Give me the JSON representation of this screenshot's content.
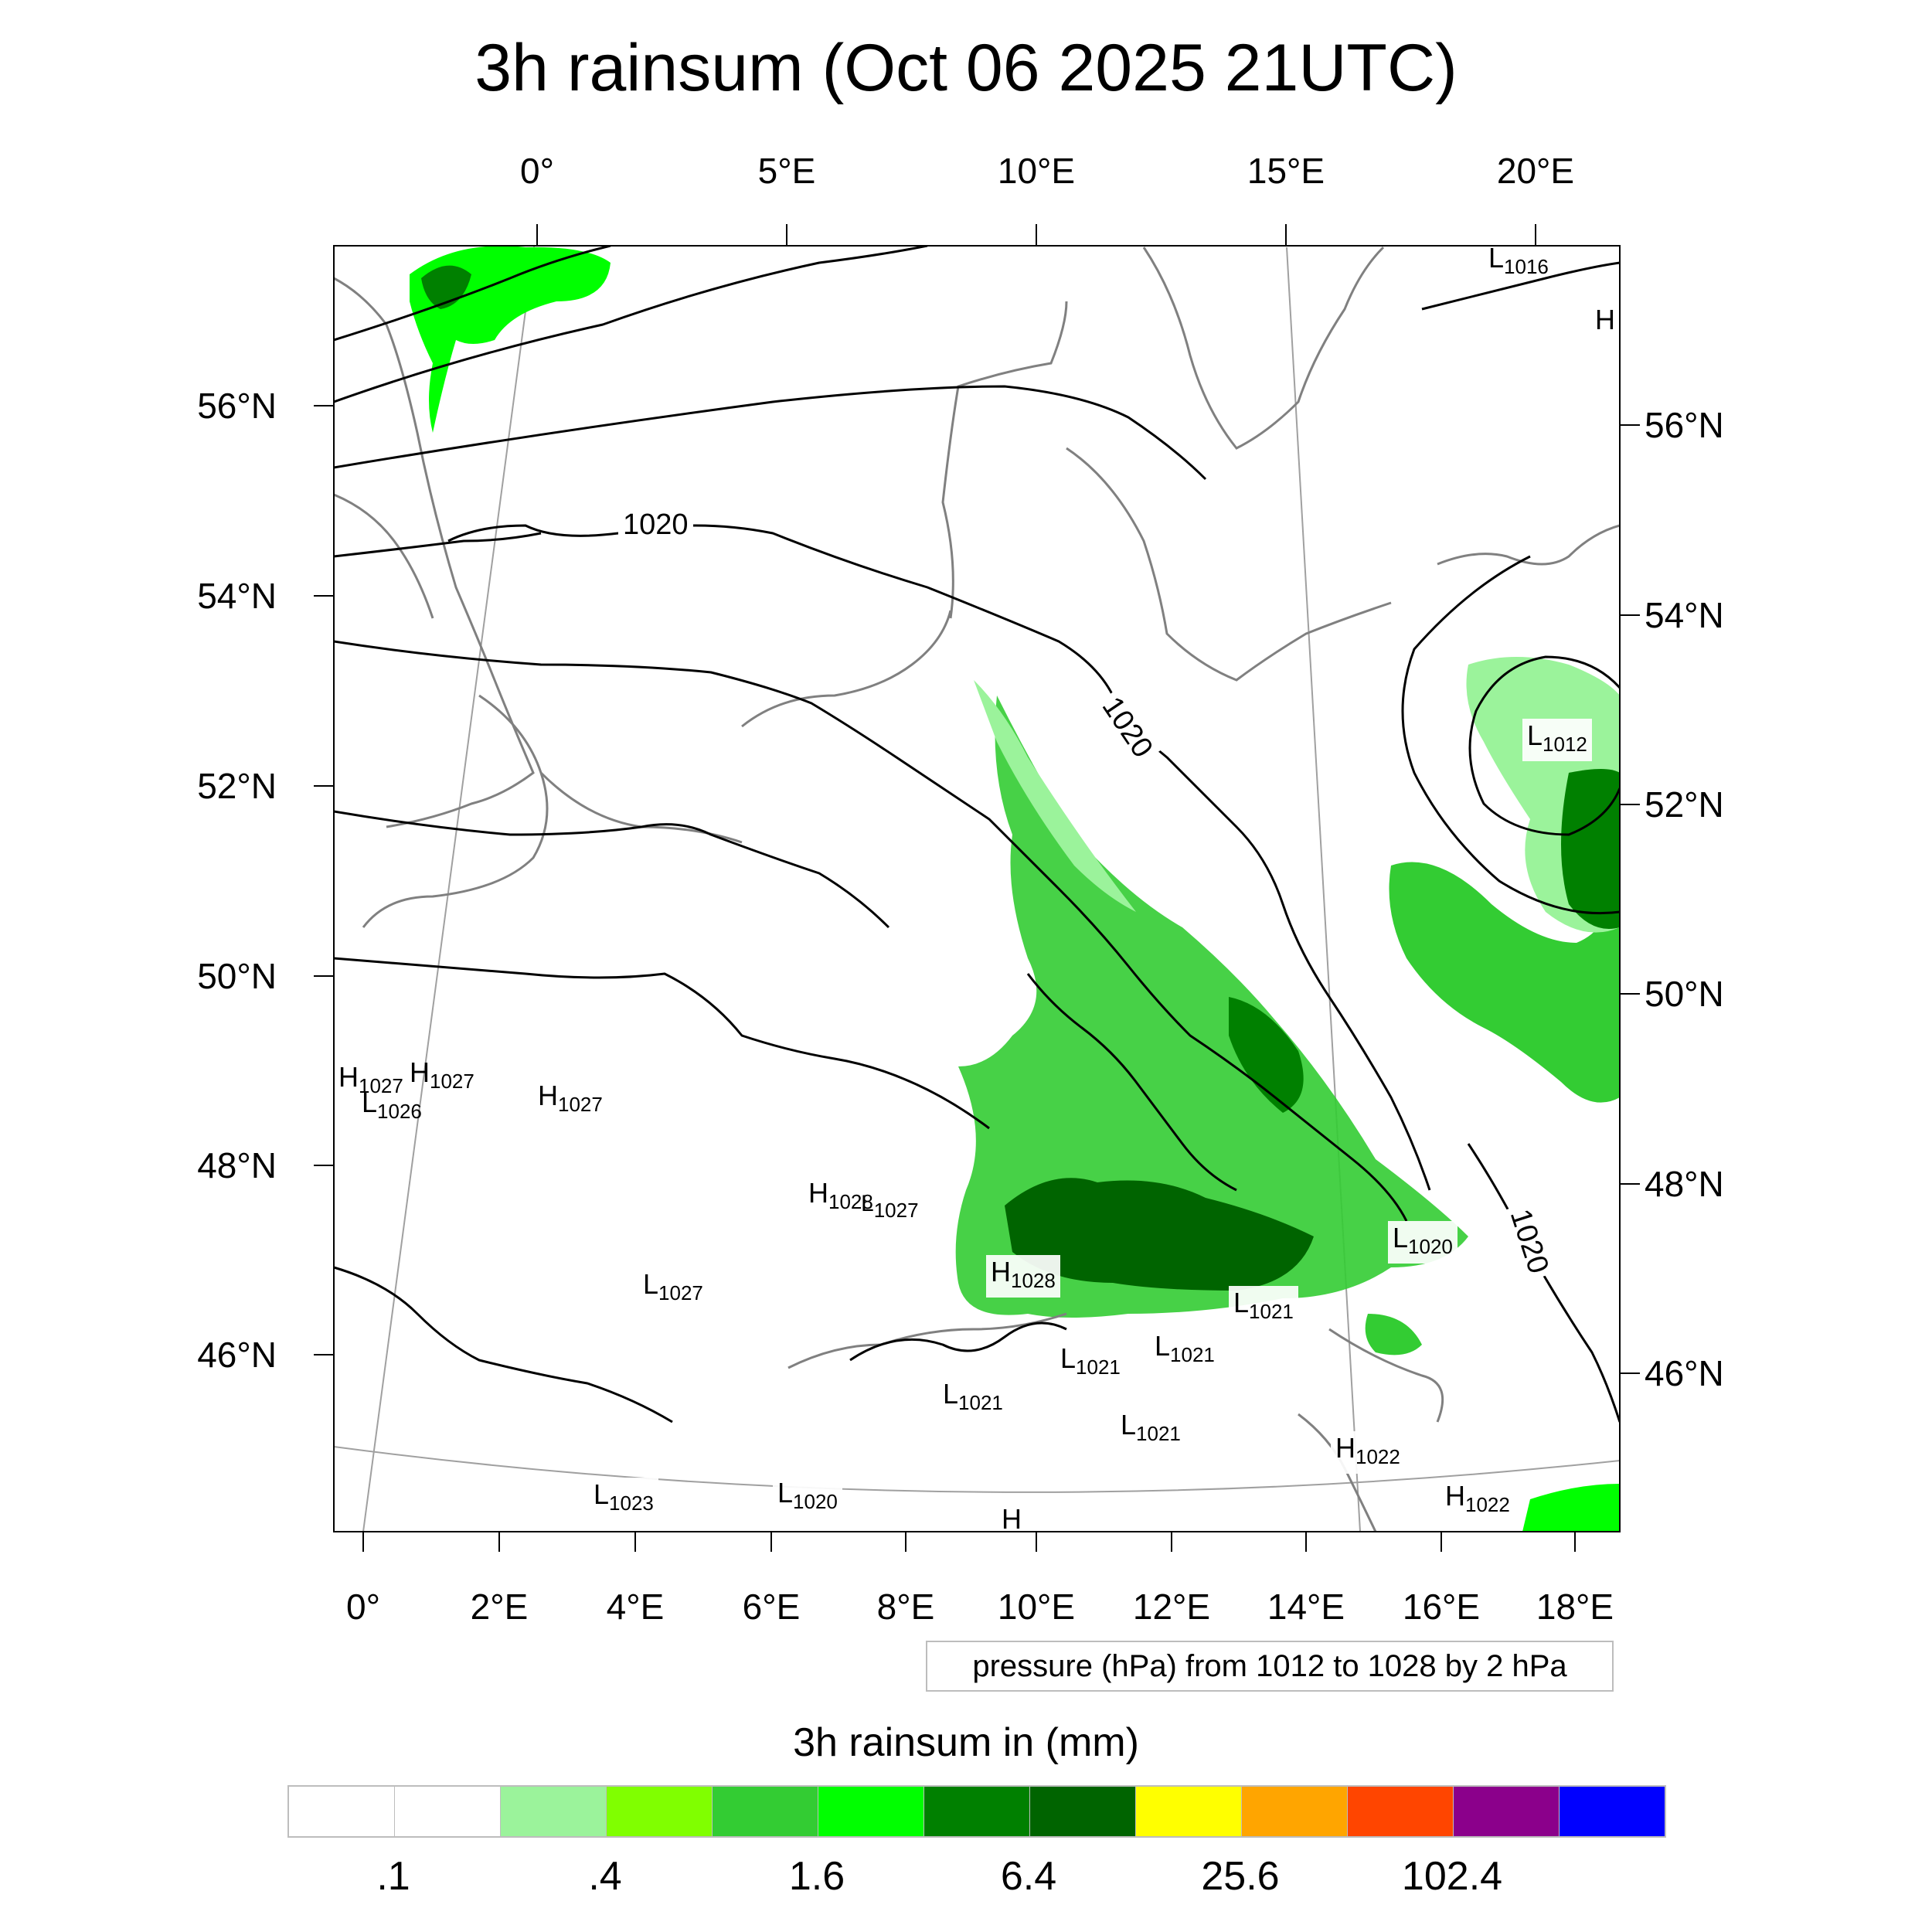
{
  "title": "3h rainsum (Oct 06 2025 21UTC)",
  "axes": {
    "top_lon_labels": [
      "0°",
      "5°E",
      "10°E",
      "15°E",
      "20°E"
    ],
    "bottom_lon_labels": [
      "0°",
      "2°E",
      "4°E",
      "6°E",
      "8°E",
      "10°E",
      "12°E",
      "14°E",
      "16°E",
      "18°E"
    ],
    "left_lat_labels": [
      "56°N",
      "54°N",
      "52°N",
      "50°N",
      "48°N",
      "46°N"
    ],
    "right_lat_labels": [
      "56°N",
      "54°N",
      "52°N",
      "50°N",
      "48°N",
      "46°N"
    ]
  },
  "isobar_labels": [
    "1020",
    "1020",
    "1020"
  ],
  "pressure_centers": [
    {
      "type": "L",
      "value": "1016"
    },
    {
      "type": "H",
      "value": ""
    },
    {
      "type": "L",
      "value": "1012"
    },
    {
      "type": "H",
      "value": "1027"
    },
    {
      "type": "L",
      "value": "1026"
    },
    {
      "type": "H",
      "value": "1027"
    },
    {
      "type": "H",
      "value": "1027"
    },
    {
      "type": "H",
      "value": "1028"
    },
    {
      "type": "L",
      "value": "1027"
    },
    {
      "type": "L",
      "value": "1027"
    },
    {
      "type": "H",
      "value": "1028"
    },
    {
      "type": "L",
      "value": "1020"
    },
    {
      "type": "L",
      "value": "1021"
    },
    {
      "type": "L",
      "value": "1021"
    },
    {
      "type": "L",
      "value": "1021"
    },
    {
      "type": "L",
      "value": "1021"
    },
    {
      "type": "L",
      "value": "1021"
    },
    {
      "type": "H",
      "value": "1022"
    },
    {
      "type": "H",
      "value": "1022"
    },
    {
      "type": "L",
      "value": "1023"
    },
    {
      "type": "L",
      "value": "1020"
    },
    {
      "type": "H",
      "value": ""
    }
  ],
  "pressure_info": "pressure (hPa) from 1012 to 1028 by 2 hPa",
  "colorbar": {
    "title": "3h rainsum in (mm)",
    "colors": [
      "#ffffff",
      "#ffffff",
      "#9bf39b",
      "#80ff00",
      "#33cc33",
      "#00ff00",
      "#008000",
      "#006400",
      "#ffff00",
      "#ffa500",
      "#ff4500",
      "#8b008b",
      "#0000ff"
    ],
    "labels": [
      ".1",
      ".4",
      "1.6",
      "6.4",
      "25.6",
      "102.4"
    ]
  },
  "colors": {
    "coastline": "#808080",
    "isobar": "#000000",
    "graticule": "#a0a0a0"
  }
}
